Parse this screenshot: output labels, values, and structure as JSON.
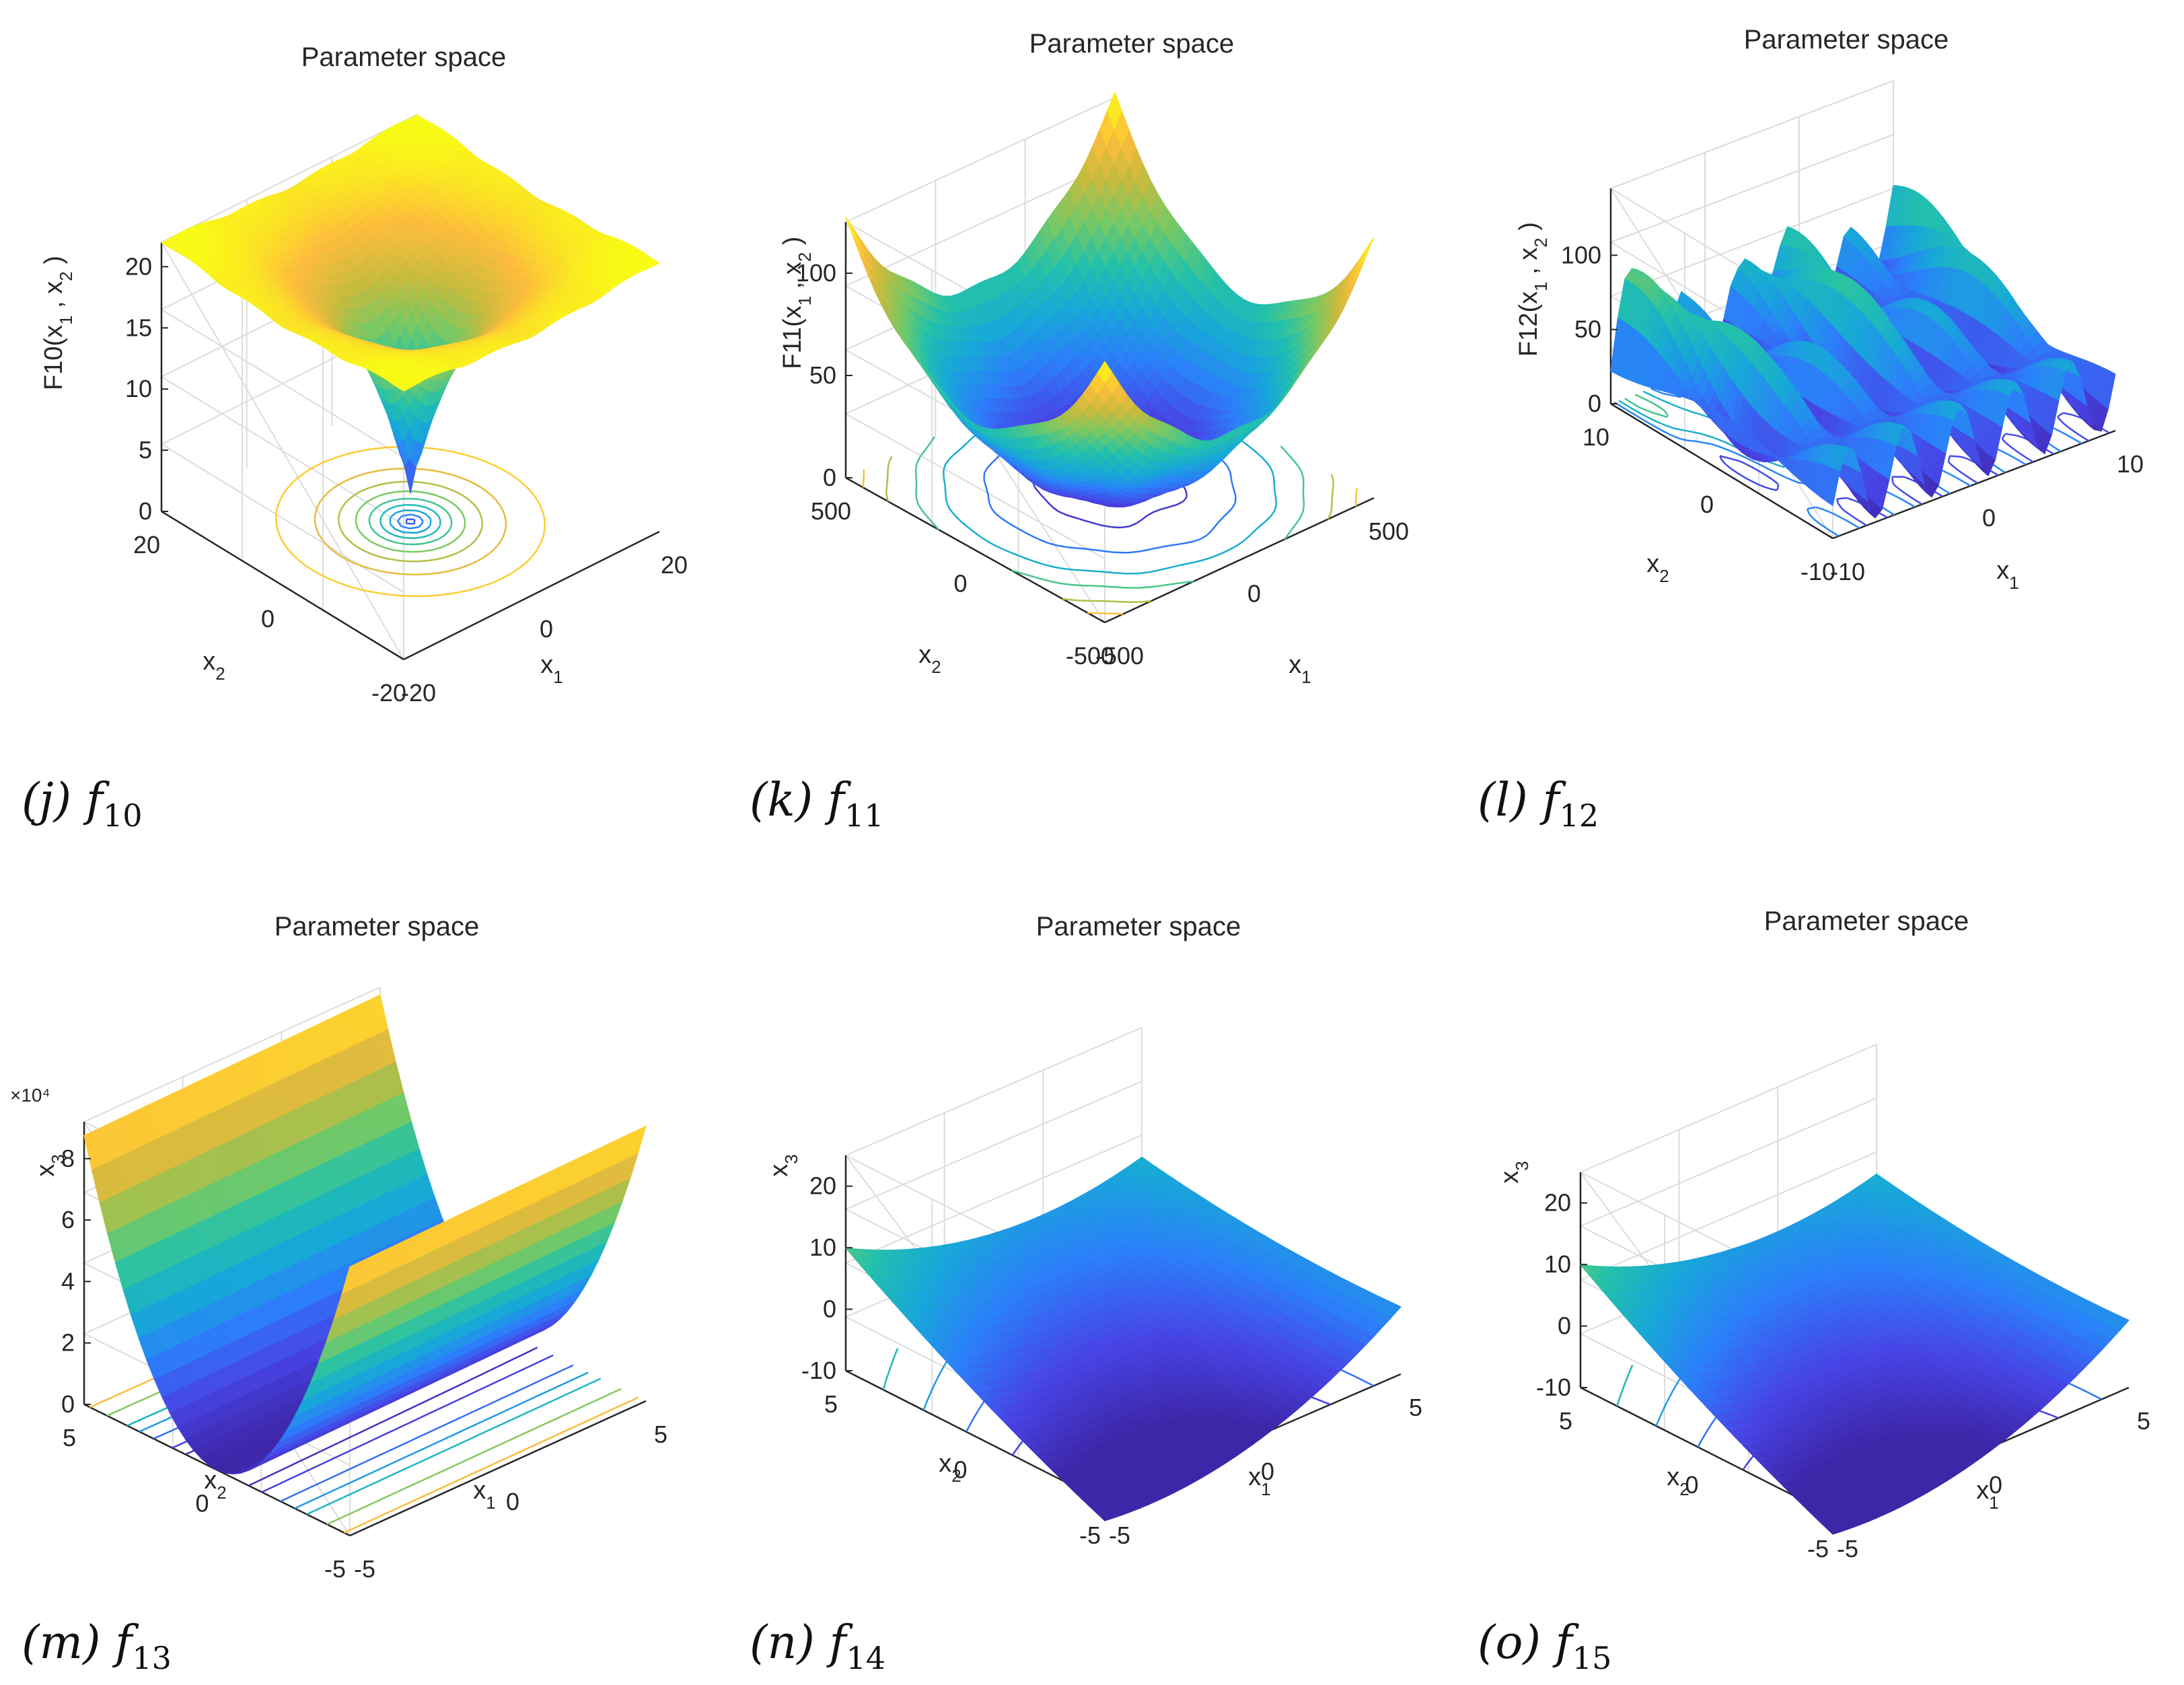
{
  "figures": [
    {
      "id": "j",
      "title": "Parameter space",
      "zlabel_main": "F10(x",
      "zlabel_tail": ")",
      "zticks": [
        "0",
        "5",
        "10",
        "15",
        "20"
      ],
      "x1ticks": [
        "-20",
        "0",
        "20"
      ],
      "x2ticks": [
        "20",
        "0",
        "-20"
      ],
      "x1label": "x",
      "x2label": "x",
      "caption_letter": "(j)",
      "caption_f": "f",
      "caption_sub": "10"
    },
    {
      "id": "k",
      "title": "Parameter space",
      "zlabel_main": "F11(x",
      "zlabel_tail": ")",
      "zticks": [
        "0",
        "50",
        "100"
      ],
      "x1ticks": [
        "-500",
        "0",
        "500"
      ],
      "x2ticks": [
        "500",
        "0",
        "-500"
      ],
      "x1label": "x",
      "x2label": "x",
      "caption_letter": "(k)",
      "caption_f": "f",
      "caption_sub": "11"
    },
    {
      "id": "l",
      "title": "Parameter space",
      "zlabel_main": "F12(x",
      "zlabel_tail": ")",
      "zticks": [
        "0",
        "50",
        "100"
      ],
      "x1ticks": [
        "-10",
        "0",
        "10"
      ],
      "x2ticks": [
        "10",
        "0",
        "-10"
      ],
      "x1label": "x",
      "x2label": "x",
      "caption_letter": "(l)",
      "caption_f": "f",
      "caption_sub": "12"
    },
    {
      "id": "m",
      "title": "Parameter space",
      "zlabel_main": "x",
      "zlabel_sub": "3",
      "zexp": "×10⁴",
      "zticks": [
        "0",
        "2",
        "4",
        "6",
        "8"
      ],
      "x1ticks": [
        "-5",
        "0",
        "5"
      ],
      "x2ticks": [
        "5",
        "0",
        "-5"
      ],
      "x1label": "x",
      "x2label": "x",
      "caption_letter": "(m)",
      "caption_f": "f",
      "caption_sub": "13"
    },
    {
      "id": "n",
      "title": "Parameter space",
      "zlabel_main": "x",
      "zlabel_sub": "3",
      "zticks": [
        "-10",
        "0",
        "10",
        "20"
      ],
      "x1ticks": [
        "-5",
        "0",
        "5"
      ],
      "x2ticks": [
        "5",
        "0",
        "-5"
      ],
      "x1label": "x",
      "x2label": "x",
      "caption_letter": "(n)",
      "caption_f": "f",
      "caption_sub": "14"
    },
    {
      "id": "o",
      "title": "Parameter space",
      "zlabel_main": "x",
      "zlabel_sub": "3",
      "zticks": [
        "-10",
        "0",
        "10",
        "20"
      ],
      "x1ticks": [
        "-5",
        "0",
        "5"
      ],
      "x2ticks": [
        "5",
        "0",
        "-5"
      ],
      "x1label": "x",
      "x2label": "x",
      "caption_letter": "(o)",
      "caption_f": "f",
      "caption_sub": "15"
    }
  ],
  "chart_data": [
    {
      "type": "surface3d",
      "title": "Parameter space",
      "zlabel": "F10(x1 , x2 )",
      "xlabel": "x1",
      "ylabel": "x2",
      "xlim": [
        -20,
        20
      ],
      "ylim": [
        -20,
        20
      ],
      "zlim": [
        0,
        20
      ],
      "shape": "funnel with contour rings",
      "colormap": "parula"
    },
    {
      "type": "surface3d",
      "title": "Parameter space",
      "zlabel": "F11(x1 , x2 )",
      "xlabel": "x1",
      "ylabel": "x2",
      "xlim": [
        -500,
        500
      ],
      "ylim": [
        -500,
        500
      ],
      "zlim": [
        0,
        120
      ],
      "shape": "bowl with contour rings",
      "colormap": "parula"
    },
    {
      "type": "surface3d",
      "title": "Parameter space",
      "zlabel": "F12(x1 , x2 )",
      "xlabel": "x1",
      "ylabel": "x2",
      "xlim": [
        -10,
        10
      ],
      "ylim": [
        -10,
        10
      ],
      "zlim": [
        0,
        140
      ],
      "shape": "multi-peaked ridges",
      "colormap": "parula"
    },
    {
      "type": "surface3d",
      "title": "Parameter space",
      "zlabel": "x3",
      "xlabel": "x1",
      "ylabel": "x2",
      "xlim": [
        -5,
        5
      ],
      "ylim": [
        -5,
        5
      ],
      "zlim": [
        0,
        90000
      ],
      "zscale": "x10^4",
      "shape": "valley",
      "colormap": "parula"
    },
    {
      "type": "surface3d",
      "title": "Parameter space",
      "zlabel": "x3",
      "xlabel": "x1",
      "ylabel": "x2",
      "xlim": [
        -5,
        5
      ],
      "ylim": [
        -5,
        5
      ],
      "zlim": [
        -10,
        25
      ],
      "shape": "parabolic trough",
      "colormap": "parula"
    },
    {
      "type": "surface3d",
      "title": "Parameter space",
      "zlabel": "x3",
      "xlabel": "x1",
      "ylabel": "x2",
      "xlim": [
        -5,
        5
      ],
      "ylim": [
        -5,
        5
      ],
      "zlim": [
        -10,
        25
      ],
      "shape": "parabolic trough",
      "colormap": "parula"
    }
  ],
  "colors": {
    "parula": [
      "#3e26a8",
      "#4744e6",
      "#2c7efa",
      "#17a8d8",
      "#23c1aa",
      "#74c966",
      "#c5bb3e",
      "#fdbc3c",
      "#f9fb15"
    ],
    "axis": "#262626",
    "grid": "#dcdcdc"
  }
}
